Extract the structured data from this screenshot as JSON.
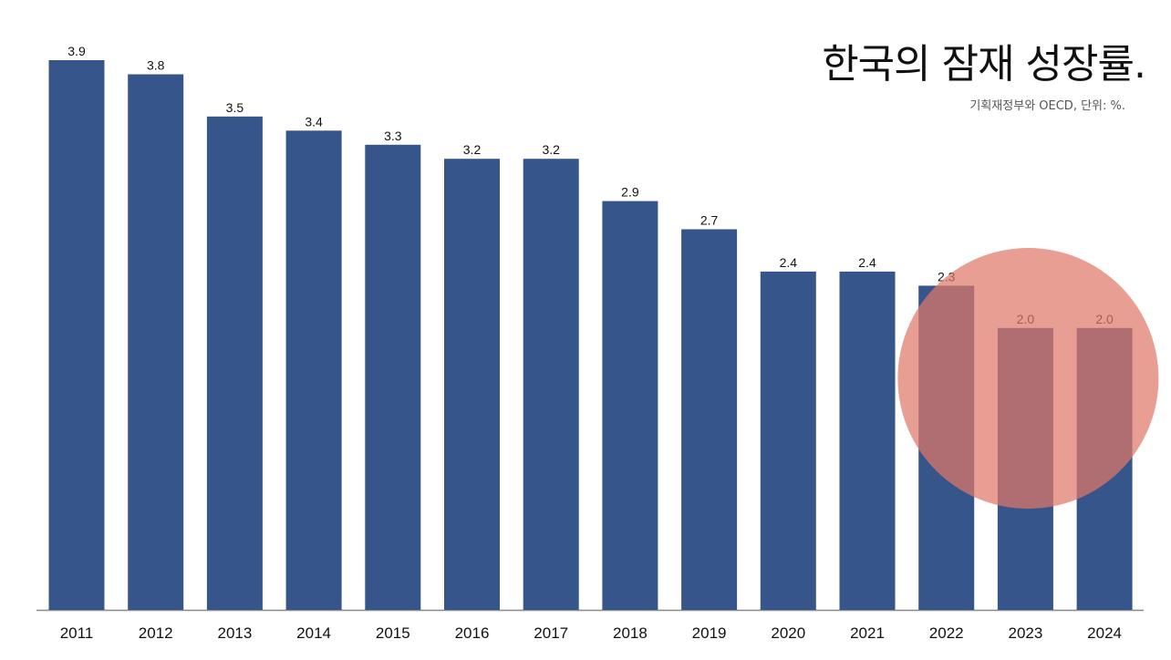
{
  "chart_data": {
    "type": "bar",
    "title": "한국의 잠재 성장률.",
    "subtitle": "기획재정부와 OECD, 단위: %.",
    "categories": [
      "2011",
      "2012",
      "2013",
      "2014",
      "2015",
      "2016",
      "2017",
      "2018",
      "2019",
      "2020",
      "2021",
      "2022",
      "2023",
      "2024"
    ],
    "values": [
      3.9,
      3.8,
      3.5,
      3.4,
      3.3,
      3.2,
      3.2,
      2.9,
      2.7,
      2.4,
      2.4,
      2.3,
      2.0,
      2.0
    ],
    "value_labels": [
      "3.9",
      "3.8",
      "3.5",
      "3.4",
      "3.3",
      "3.2",
      "3.2",
      "2.9",
      "2.7",
      "2.4",
      "2.4",
      "2.3",
      "2.0",
      "2.0"
    ],
    "xlabel": "",
    "ylabel": "",
    "ylim": [
      0,
      3.9
    ],
    "grid": false,
    "legend": "none",
    "highlight": {
      "shape": "circle",
      "categories": [
        "2022",
        "2023",
        "2024"
      ]
    },
    "colors": {
      "bar": "#36558a",
      "highlight": "#e0786a",
      "axis": "#888888",
      "text": "#111111"
    }
  }
}
